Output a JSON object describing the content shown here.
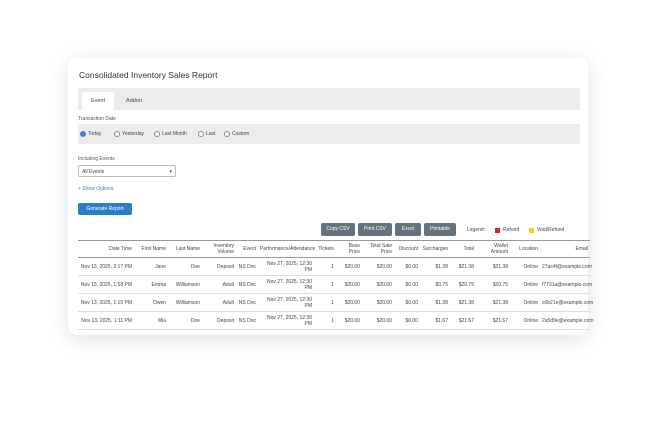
{
  "header": {
    "title": "Consolidated Inventory Sales Report"
  },
  "tabs": [
    "Event",
    "Addon"
  ],
  "date_filter": {
    "label": "Transaction Date",
    "options": [
      "Today",
      "Yesterday",
      "Last Month",
      "Last",
      "Custom"
    ]
  },
  "events_filter": {
    "label": "Including Events",
    "selected": "All Events"
  },
  "options_link": "+ Show Options",
  "generate_button": "Generate Report",
  "toolbar": {
    "buttons": [
      "Copy CSV",
      "Print CSV",
      "Excel",
      "Printable"
    ],
    "legend_label": "Legend:",
    "legend": [
      {
        "label": "Refund",
        "color": "#e02020"
      },
      {
        "label": "Void/Refund",
        "color": "#f0d020"
      }
    ]
  },
  "table": {
    "columns": [
      "Date Time",
      "First Name",
      "Last Name",
      "Inventory Volume",
      "Event",
      "Performance/Attendance",
      "Tickets",
      "Base Price",
      "Total Sale Price",
      "Discount",
      "Surcharges",
      "Total",
      "Wallet Amount",
      "Location",
      "Email"
    ],
    "rows": [
      [
        "Nov 13, 2025, 2:17 PM",
        "Jane",
        "Doe",
        "Deposit",
        "NS Doc",
        "Nov 27, 2025, 12:30 PM",
        "1",
        "$20.00",
        "$20.00",
        "$0.00",
        "$1.38",
        "$21.38",
        "$21.38",
        "Online",
        "27ac4f@example.com"
      ],
      [
        "Nov 13, 2025, 1:58 PM",
        "Emma",
        "Williamson",
        "Adult",
        "NS Doc",
        "Nov 27, 2025, 12:30 PM",
        "1",
        "$20.00",
        "$20.00",
        "$0.00",
        "$0.75",
        "$20.75",
        "$20.75",
        "Online",
        "f7731a@example.com"
      ],
      [
        "Nov 13, 2025, 1:15 PM",
        "Owen",
        "Williamson",
        "Adult",
        "NS Doc",
        "Nov 27, 2025, 12:30 PM",
        "1",
        "$20.00",
        "$20.00",
        "$0.00",
        "$1.38",
        "$21.38",
        "$21.38",
        "Online",
        "c0b21e@example.com"
      ],
      [
        "Nov 13, 2025, 1:11 PM",
        "Mia",
        "Doe",
        "Deposit",
        "NS Doc",
        "Nov 27, 2025, 12:30 PM",
        "1",
        "$20.00",
        "$20.00",
        "$0.00",
        "$1.67",
        "$21.67",
        "$21.67",
        "Online",
        "2a5d9e@example.com"
      ]
    ]
  }
}
